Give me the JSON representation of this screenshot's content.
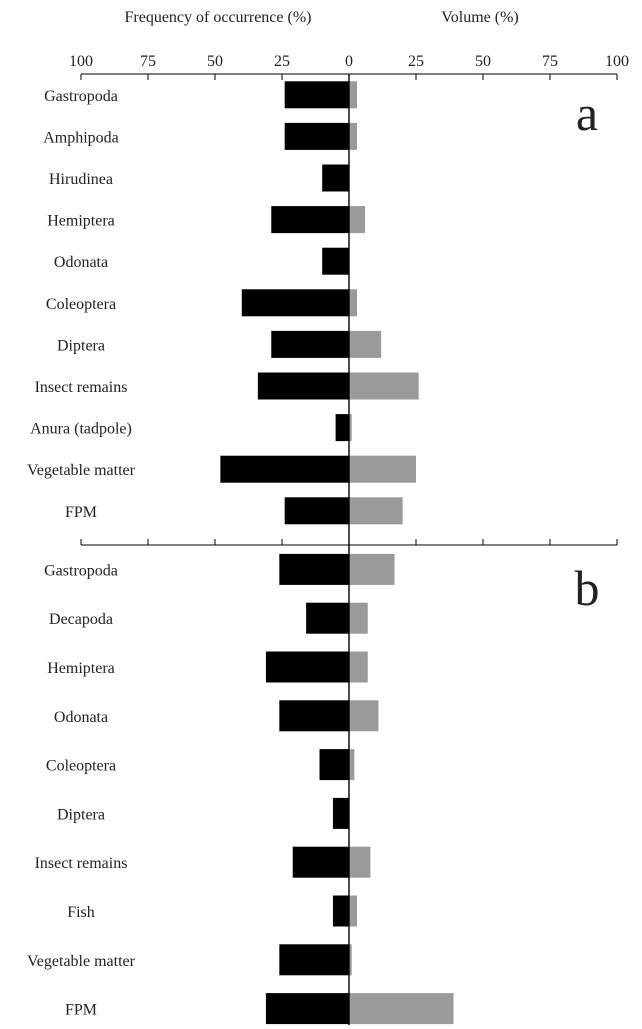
{
  "chart_data": {
    "type": "bar",
    "orientation": "horizontal",
    "layout": "diverging",
    "headers": {
      "left": "Frequency of occurrence (%)",
      "right": "Volume (%)"
    },
    "axis": {
      "range": [
        0,
        100
      ],
      "ticks_left": [
        "100",
        "75",
        "50",
        "25"
      ],
      "tick_center": "0",
      "ticks_right": [
        "25",
        "50",
        "75",
        "100"
      ]
    },
    "colors": {
      "frequency": "#000000",
      "volume": "#9a9a9a"
    },
    "panels": [
      {
        "label": "a",
        "categories": [
          "Gastropoda",
          "Amphipoda",
          "Hirudinea",
          "Hemiptera",
          "Odonata",
          "Coleoptera",
          "Diptera",
          "Insect remains",
          "Anura (tadpole)",
          "Vegetable matter",
          "FPM"
        ],
        "frequency": [
          24,
          24,
          10,
          29,
          10,
          40,
          29,
          34,
          5,
          48,
          24
        ],
        "volume": [
          3,
          3,
          0,
          6,
          0,
          3,
          12,
          26,
          1,
          25,
          20
        ]
      },
      {
        "label": "b",
        "categories": [
          "Gastropoda",
          "Decapoda",
          "Hemiptera",
          "Odonata",
          "Coleoptera",
          "Diptera",
          "Insect remains",
          "Fish",
          "Vegetable matter",
          "FPM"
        ],
        "frequency": [
          26,
          16,
          31,
          26,
          11,
          6,
          21,
          6,
          26,
          31
        ],
        "volume": [
          17,
          7,
          7,
          11,
          2,
          0,
          8,
          3,
          1,
          39
        ]
      }
    ]
  }
}
